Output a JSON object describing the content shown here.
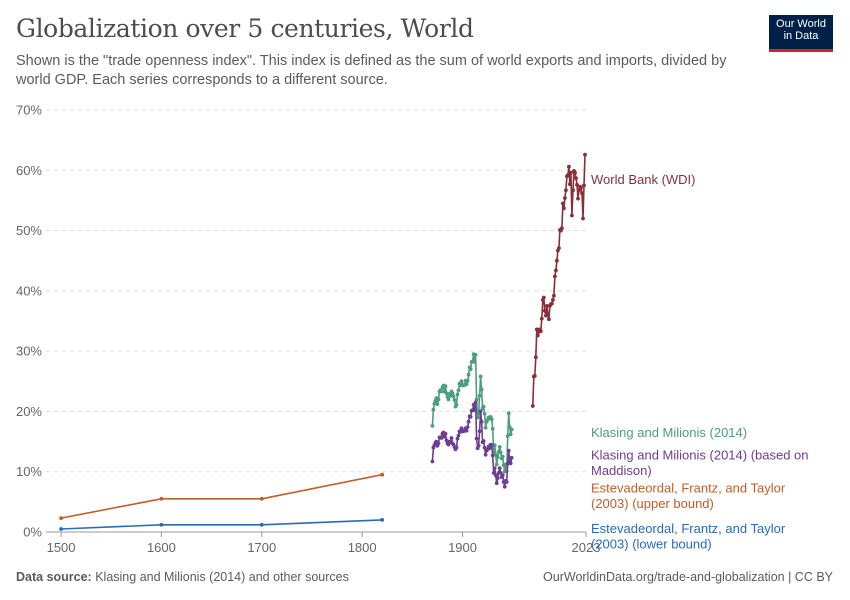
{
  "header": {
    "title": "Globalization over 5 centuries, World",
    "subtitle": "Shown is the \"trade openness index\". This index is defined as the sum of world exports and imports, divided by world GDP. Each series corresponds to a different source."
  },
  "logo": {
    "line1": "Our World",
    "line2": "in Data",
    "bg_color": "#002147",
    "accent_color": "#ce261e"
  },
  "footer": {
    "source_label": "Data source:",
    "source_text": "Klasing and Milionis (2014) and other sources",
    "link_text": "OurWorldinData.org/trade-and-globalization | CC BY"
  },
  "chart_data": {
    "type": "line",
    "title": "Globalization over 5 centuries, World",
    "x_ticks": [
      "1500",
      "1600",
      "1700",
      "1800",
      "1900",
      "2023"
    ],
    "x_tick_values": [
      1500,
      1600,
      1700,
      1800,
      1900,
      2023
    ],
    "y_ticks": [
      "0%",
      "10%",
      "20%",
      "30%",
      "40%",
      "50%",
      "60%",
      "70%"
    ],
    "y_tick_values": [
      0,
      10,
      20,
      30,
      40,
      50,
      60,
      70
    ],
    "xlim": [
      1485,
      2023
    ],
    "ylim": [
      0,
      70
    ],
    "grid": "horizontal dashed",
    "series": [
      {
        "name": "World Bank (WDI)",
        "label_lines": [
          "World Bank (WDI)"
        ],
        "color": "#883039",
        "x": [
          1970,
          1971,
          1972,
          1973,
          1974,
          1975,
          1976,
          1977,
          1978,
          1979,
          1980,
          1981,
          1982,
          1983,
          1984,
          1985,
          1986,
          1987,
          1988,
          1989,
          1990,
          1991,
          1992,
          1993,
          1994,
          1995,
          1996,
          1997,
          1998,
          1999,
          2000,
          2001,
          2002,
          2003,
          2004,
          2005,
          2006,
          2007,
          2008,
          2009,
          2010,
          2011,
          2012,
          2013,
          2014,
          2015,
          2016,
          2017,
          2018,
          2019,
          2020,
          2021,
          2022
        ],
        "y": [
          20.9,
          25.8,
          25.9,
          29.0,
          33.6,
          32.6,
          33.2,
          33.6,
          33.3,
          35.4,
          38.5,
          38.9,
          36.7,
          35.9,
          37.5,
          36.1,
          35.3,
          37.5,
          37.8,
          37.9,
          38.5,
          39.2,
          42.4,
          43.4,
          45.0,
          46.7,
          47.1,
          50.1,
          50.0,
          50.4,
          54.5,
          53.7,
          55.4,
          56.7,
          59.0,
          59.2,
          60.6,
          57.7,
          59.6,
          52.5,
          56.7,
          59.9,
          59.6,
          58.7,
          57.6,
          55.3,
          56.7,
          57.3,
          57.1,
          56.2,
          52.0,
          57.5,
          62.6
        ],
        "label_value": 58.5
      },
      {
        "name": "Klasing and Milionis (2014)",
        "label_lines": [
          "Klasing and Milionis (2014)"
        ],
        "color": "#4c9e7e",
        "x": [
          1870,
          1871,
          1872,
          1873,
          1874,
          1875,
          1876,
          1877,
          1878,
          1879,
          1880,
          1881,
          1882,
          1883,
          1884,
          1885,
          1886,
          1887,
          1888,
          1889,
          1890,
          1891,
          1892,
          1893,
          1894,
          1895,
          1896,
          1897,
          1898,
          1899,
          1900,
          1901,
          1902,
          1903,
          1904,
          1905,
          1906,
          1907,
          1908,
          1909,
          1910,
          1911,
          1912,
          1913,
          1914,
          1915,
          1916,
          1917,
          1918,
          1919,
          1920,
          1921,
          1922,
          1923,
          1924,
          1925,
          1926,
          1927,
          1928,
          1929,
          1930,
          1931,
          1932,
          1933,
          1934,
          1935,
          1936,
          1937,
          1938,
          1939,
          1940,
          1941,
          1942,
          1943,
          1944,
          1945,
          1946,
          1947,
          1948,
          1949
        ],
        "y": [
          17.6,
          20.3,
          21.3,
          21.8,
          22.2,
          21.2,
          22.0,
          23.3,
          23.5,
          23.3,
          24.0,
          24.3,
          23.3,
          24.2,
          23.0,
          22.4,
          22.0,
          22.9,
          22.6,
          23.3,
          23.0,
          22.5,
          21.9,
          20.8,
          21.1,
          22.8,
          23.5,
          24.6,
          24.3,
          25.0,
          24.4,
          24.3,
          24.4,
          25.1,
          24.5,
          25.1,
          26.1,
          27.3,
          27.0,
          28.2,
          28.3,
          29.5,
          28.2,
          29.4,
          22.0,
          19.0,
          19.6,
          22.6,
          25.8,
          23.6,
          20.5,
          20.8,
          19.6,
          17.3,
          18.3,
          18.6,
          19.0,
          18.9,
          19.1,
          18.7,
          17.1,
          13.3,
          14.4,
          12.8,
          11.2,
          12.4,
          13.3,
          14.1,
          13.2,
          12.2,
          12.5,
          11.1,
          10.0,
          11.2,
          10.1,
          15.9,
          19.7,
          17.4,
          16.2,
          17.0
        ],
        "label_value": 16.5
      },
      {
        "name": "Klasing and Milionis (2014) (based on Maddison)",
        "label_lines": [
          "Klasing and Milionis (2014) (based on",
          "Maddison)"
        ],
        "color": "#6d3e91",
        "x": [
          1870,
          1871,
          1872,
          1873,
          1874,
          1875,
          1876,
          1877,
          1878,
          1879,
          1880,
          1881,
          1882,
          1883,
          1884,
          1885,
          1886,
          1887,
          1888,
          1889,
          1890,
          1891,
          1892,
          1893,
          1894,
          1895,
          1896,
          1897,
          1898,
          1899,
          1900,
          1901,
          1902,
          1903,
          1904,
          1905,
          1906,
          1907,
          1908,
          1909,
          1910,
          1911,
          1912,
          1913,
          1914,
          1915,
          1916,
          1917,
          1918,
          1919,
          1920,
          1921,
          1922,
          1923,
          1924,
          1925,
          1926,
          1927,
          1928,
          1929,
          1930,
          1931,
          1932,
          1933,
          1934,
          1935,
          1936,
          1937,
          1938,
          1939,
          1940,
          1941,
          1942,
          1943,
          1944,
          1945,
          1946,
          1947,
          1948,
          1949
        ],
        "y": [
          11.7,
          14.0,
          14.4,
          14.8,
          15.0,
          14.3,
          14.7,
          15.7,
          15.7,
          15.6,
          16.3,
          16.5,
          15.8,
          16.3,
          15.2,
          14.7,
          14.5,
          15.0,
          14.9,
          15.6,
          14.7,
          14.5,
          14.1,
          13.7,
          14.0,
          15.5,
          16.0,
          16.7,
          16.6,
          17.2,
          16.7,
          16.7,
          16.8,
          17.2,
          16.8,
          17.4,
          18.3,
          19.2,
          19.1,
          20.1,
          20.2,
          21.1,
          20.2,
          21.5,
          15.5,
          13.9,
          14.3,
          16.7,
          20.0,
          18.3,
          14.9,
          15.1,
          14.0,
          12.8,
          13.5,
          13.7,
          14.2,
          13.9,
          14.5,
          14.4,
          12.7,
          9.8,
          10.6,
          9.4,
          8.1,
          8.9,
          9.8,
          10.6,
          9.8,
          9.1,
          9.4,
          8.3,
          7.5,
          8.5,
          8.3,
          11.3,
          13.5,
          11.8,
          11.4,
          12.3
        ],
        "label_value": 12.8
      },
      {
        "name": "Estevadeordal, Frantz, and Taylor (2003) (upper bound)",
        "label_lines": [
          "Estevadeordal, Frantz, and Taylor",
          "(2003) (upper bound)"
        ],
        "color": "#c15e28",
        "x": [
          1500,
          1600,
          1700,
          1820
        ],
        "y": [
          2.3,
          5.5,
          5.5,
          9.5
        ],
        "label_value": 7.3
      },
      {
        "name": "Estevadeordal, Frantz, and Taylor (2003) (lower bound)",
        "label_lines": [
          "Estevadeordal, Frantz, and Taylor",
          "(2003) (lower bound)"
        ],
        "color": "#286bbb",
        "x": [
          1500,
          1600,
          1700,
          1820
        ],
        "y": [
          0.5,
          1.2,
          1.2,
          2.0
        ],
        "label_value": 0.6
      }
    ]
  }
}
